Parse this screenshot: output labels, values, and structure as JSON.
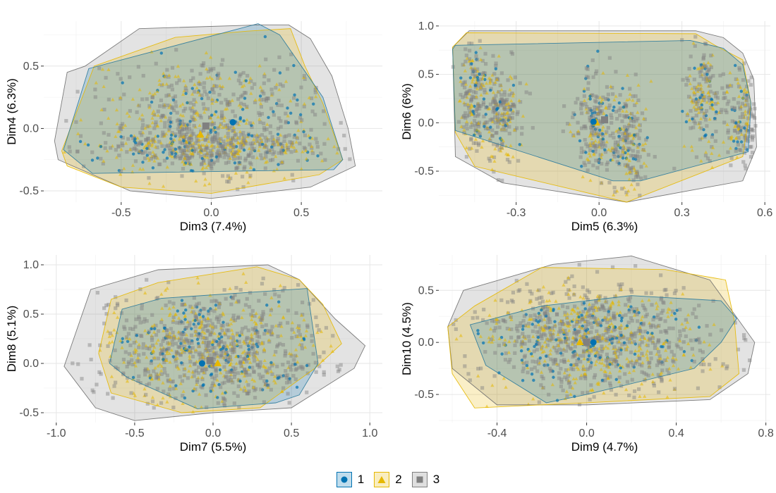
{
  "chart_data": [
    {
      "type": "scatter",
      "xlabel": "Dim3 (7.4%)",
      "ylabel": "Dim4 (6.3%)",
      "xlim": [
        -0.93,
        0.95
      ],
      "ylim": [
        -0.59,
        0.86
      ],
      "xticks": [
        -0.5,
        0.0,
        0.5
      ],
      "yticks": [
        -0.5,
        0.0,
        0.5
      ],
      "xtick_labels": [
        "-0.5",
        "0.0",
        "0.5"
      ],
      "ytick_labels": [
        "-0.5",
        "0.0",
        "0.5"
      ],
      "grid": true,
      "cloud": {
        "cx": 0.0,
        "cy": 0.05,
        "sx": 0.32,
        "sy": 0.28
      },
      "hulls": {
        "3": [
          [
            -0.8,
            0.45
          ],
          [
            -0.7,
            0.5
          ],
          [
            -0.4,
            0.8
          ],
          [
            0.27,
            0.83
          ],
          [
            0.43,
            0.83
          ],
          [
            0.55,
            0.72
          ],
          [
            0.67,
            0.42
          ],
          [
            0.76,
            0.0
          ],
          [
            0.8,
            -0.3
          ],
          [
            0.55,
            -0.47
          ],
          [
            0.0,
            -0.56
          ],
          [
            -0.45,
            -0.5
          ],
          [
            -0.85,
            -0.25
          ],
          [
            -0.87,
            -0.1
          ]
        ],
        "2": [
          [
            -0.83,
            -0.18
          ],
          [
            -0.65,
            0.5
          ],
          [
            -0.2,
            0.73
          ],
          [
            0.2,
            0.78
          ],
          [
            0.44,
            0.8
          ],
          [
            0.52,
            0.5
          ],
          [
            0.62,
            0.2
          ],
          [
            0.73,
            -0.25
          ],
          [
            0.6,
            -0.37
          ],
          [
            0.0,
            -0.52
          ],
          [
            -0.5,
            -0.47
          ],
          [
            -0.8,
            -0.3
          ]
        ],
        "1": [
          [
            -0.82,
            -0.17
          ],
          [
            -0.68,
            0.48
          ],
          [
            0.26,
            0.84
          ],
          [
            0.38,
            0.75
          ],
          [
            0.5,
            0.5
          ],
          [
            0.62,
            0.25
          ],
          [
            0.73,
            -0.25
          ],
          [
            0.68,
            -0.33
          ],
          [
            -0.66,
            -0.36
          ]
        ]
      },
      "centroids": {
        "1": [
          0.12,
          0.05
        ],
        "2": [
          -0.06,
          -0.05
        ],
        "3": [
          -0.03,
          0.02
        ]
      }
    },
    {
      "type": "scatter",
      "xlabel": "Dim5 (6.3%)",
      "ylabel": "Dim6 (6%)",
      "xlim": [
        -0.58,
        0.62
      ],
      "ylim": [
        -0.82,
        1.05
      ],
      "xticks": [
        -0.3,
        0.0,
        0.3,
        0.6
      ],
      "yticks": [
        -0.5,
        0.0,
        0.5,
        1.0
      ],
      "xtick_labels": [
        "-0.3",
        "0.0",
        "0.3",
        "0.6"
      ],
      "ytick_labels": [
        "-0.5",
        "0.0",
        "0.5",
        "1.0"
      ],
      "grid": true,
      "clusters": [
        [
          -0.45,
          0.25
        ],
        [
          -0.35,
          0.05
        ],
        [
          -0.02,
          0.0
        ],
        [
          0.1,
          -0.2
        ],
        [
          0.38,
          0.25
        ],
        [
          0.52,
          0.0
        ]
      ],
      "hulls": {
        "3": [
          [
            -0.53,
            0.78
          ],
          [
            -0.47,
            0.95
          ],
          [
            0.35,
            0.95
          ],
          [
            0.45,
            0.88
          ],
          [
            0.52,
            0.72
          ],
          [
            0.56,
            0.45
          ],
          [
            0.57,
            -0.25
          ],
          [
            0.52,
            -0.6
          ],
          [
            0.1,
            -0.82
          ],
          [
            -0.35,
            -0.62
          ],
          [
            -0.52,
            -0.35
          ]
        ],
        "2": [
          [
            -0.53,
            0.78
          ],
          [
            -0.48,
            0.93
          ],
          [
            0.35,
            0.92
          ],
          [
            0.42,
            0.8
          ],
          [
            0.52,
            0.65
          ],
          [
            0.55,
            0.2
          ],
          [
            0.52,
            -0.35
          ],
          [
            0.1,
            -0.82
          ],
          [
            -0.45,
            -0.45
          ],
          [
            -0.52,
            -0.1
          ]
        ],
        "1": [
          [
            -0.53,
            0.76
          ],
          [
            -0.52,
            0.8
          ],
          [
            0.33,
            0.85
          ],
          [
            0.45,
            0.77
          ],
          [
            0.52,
            0.6
          ],
          [
            0.55,
            0.2
          ],
          [
            0.54,
            -0.3
          ],
          [
            0.15,
            -0.6
          ],
          [
            0.05,
            -0.6
          ],
          [
            -0.52,
            -0.08
          ]
        ]
      },
      "centroids": {
        "1": [
          -0.02,
          0.01
        ],
        "2": [
          -0.01,
          0.0
        ],
        "3": [
          0.02,
          0.03
        ]
      }
    },
    {
      "type": "scatter",
      "xlabel": "Dim7 (5.5%)",
      "ylabel": "Dim8 (5.1%)",
      "xlim": [
        -1.08,
        1.08
      ],
      "ylim": [
        -0.6,
        1.1
      ],
      "xticks": [
        -1.0,
        -0.5,
        0.0,
        0.5,
        1.0
      ],
      "yticks": [
        -0.5,
        0.0,
        0.5,
        1.0
      ],
      "xtick_labels": [
        "-1.0",
        "-0.5",
        "0.0",
        "0.5",
        "1.0"
      ],
      "ytick_labels": [
        "-0.5",
        "0.0",
        "0.5",
        "1.0"
      ],
      "grid": true,
      "cloud": {
        "cx": 0.0,
        "cy": 0.15,
        "sx": 0.38,
        "sy": 0.3
      },
      "hulls": {
        "3": [
          [
            -0.95,
            -0.03
          ],
          [
            -0.78,
            0.75
          ],
          [
            -0.35,
            0.95
          ],
          [
            0.35,
            1.0
          ],
          [
            0.55,
            0.85
          ],
          [
            0.78,
            0.45
          ],
          [
            0.97,
            0.18
          ],
          [
            0.9,
            -0.05
          ],
          [
            0.5,
            -0.45
          ],
          [
            0.0,
            -0.5
          ],
          [
            -0.5,
            -0.58
          ],
          [
            -0.75,
            -0.45
          ]
        ],
        "2": [
          [
            -0.73,
            0.1
          ],
          [
            -0.65,
            0.65
          ],
          [
            -0.35,
            0.82
          ],
          [
            0.28,
            0.98
          ],
          [
            0.55,
            0.85
          ],
          [
            0.7,
            0.6
          ],
          [
            0.82,
            0.2
          ],
          [
            0.65,
            -0.05
          ],
          [
            0.3,
            -0.45
          ],
          [
            -0.2,
            -0.5
          ],
          [
            -0.65,
            -0.3
          ]
        ],
        "1": [
          [
            -0.66,
            0.0
          ],
          [
            -0.58,
            0.55
          ],
          [
            -0.33,
            0.66
          ],
          [
            0.6,
            0.76
          ],
          [
            0.67,
            0.0
          ],
          [
            0.55,
            -0.32
          ],
          [
            0.4,
            -0.4
          ],
          [
            -0.1,
            -0.46
          ],
          [
            -0.55,
            -0.14
          ]
        ]
      },
      "centroids": {
        "1": [
          -0.07,
          0.0
        ],
        "2": [
          0.03,
          0.0
        ],
        "3": [
          -0.02,
          0.03
        ]
      }
    },
    {
      "type": "scatter",
      "xlabel": "Dim9 (4.7%)",
      "ylabel": "Dim10 (4.5%)",
      "xlim": [
        -0.66,
        0.82
      ],
      "ylim": [
        -0.77,
        0.84
      ],
      "xticks": [
        -0.4,
        0.0,
        0.4,
        0.8
      ],
      "yticks": [
        -0.5,
        0.0,
        0.5
      ],
      "xtick_labels": [
        "-0.4",
        "0.0",
        "0.4",
        "0.8"
      ],
      "ytick_labels": [
        "-0.5",
        "0.0",
        "0.5"
      ],
      "grid": true,
      "cloud": {
        "cx": 0.05,
        "cy": 0.05,
        "sx": 0.26,
        "sy": 0.26
      },
      "hulls": {
        "3": [
          [
            -0.55,
            0.5
          ],
          [
            -0.15,
            0.75
          ],
          [
            0.2,
            0.83
          ],
          [
            0.55,
            0.6
          ],
          [
            0.65,
            0.3
          ],
          [
            0.75,
            0.0
          ],
          [
            0.72,
            -0.3
          ],
          [
            0.55,
            -0.55
          ],
          [
            0.0,
            -0.6
          ],
          [
            -0.4,
            -0.6
          ],
          [
            -0.6,
            -0.25
          ],
          [
            -0.62,
            0.15
          ]
        ],
        "2": [
          [
            -0.62,
            0.15
          ],
          [
            -0.5,
            0.35
          ],
          [
            -0.2,
            0.72
          ],
          [
            0.35,
            0.7
          ],
          [
            0.62,
            0.6
          ],
          [
            0.66,
            0.2
          ],
          [
            0.68,
            -0.3
          ],
          [
            0.55,
            -0.52
          ],
          [
            0.0,
            -0.58
          ],
          [
            -0.5,
            -0.63
          ],
          [
            -0.6,
            -0.3
          ]
        ],
        "1": [
          [
            -0.52,
            0.17
          ],
          [
            -0.2,
            0.35
          ],
          [
            0.2,
            0.45
          ],
          [
            0.6,
            0.4
          ],
          [
            0.67,
            0.23
          ],
          [
            0.6,
            0.0
          ],
          [
            0.48,
            -0.25
          ],
          [
            0.0,
            -0.5
          ],
          [
            -0.18,
            -0.58
          ],
          [
            -0.45,
            -0.22
          ]
        ]
      },
      "centroids": {
        "1": [
          0.03,
          0.0
        ],
        "2": [
          -0.03,
          0.0
        ],
        "3": [
          0.0,
          0.0
        ]
      }
    }
  ],
  "legend": [
    {
      "label": "1",
      "shape": "circle",
      "color": "#0072B2"
    },
    {
      "label": "2",
      "shape": "triangle",
      "color": "#E6B800"
    },
    {
      "label": "3",
      "shape": "square",
      "color": "#808080"
    }
  ],
  "colors": {
    "g1": "#0072B2",
    "g2": "#E6B800",
    "g3": "#808080"
  }
}
